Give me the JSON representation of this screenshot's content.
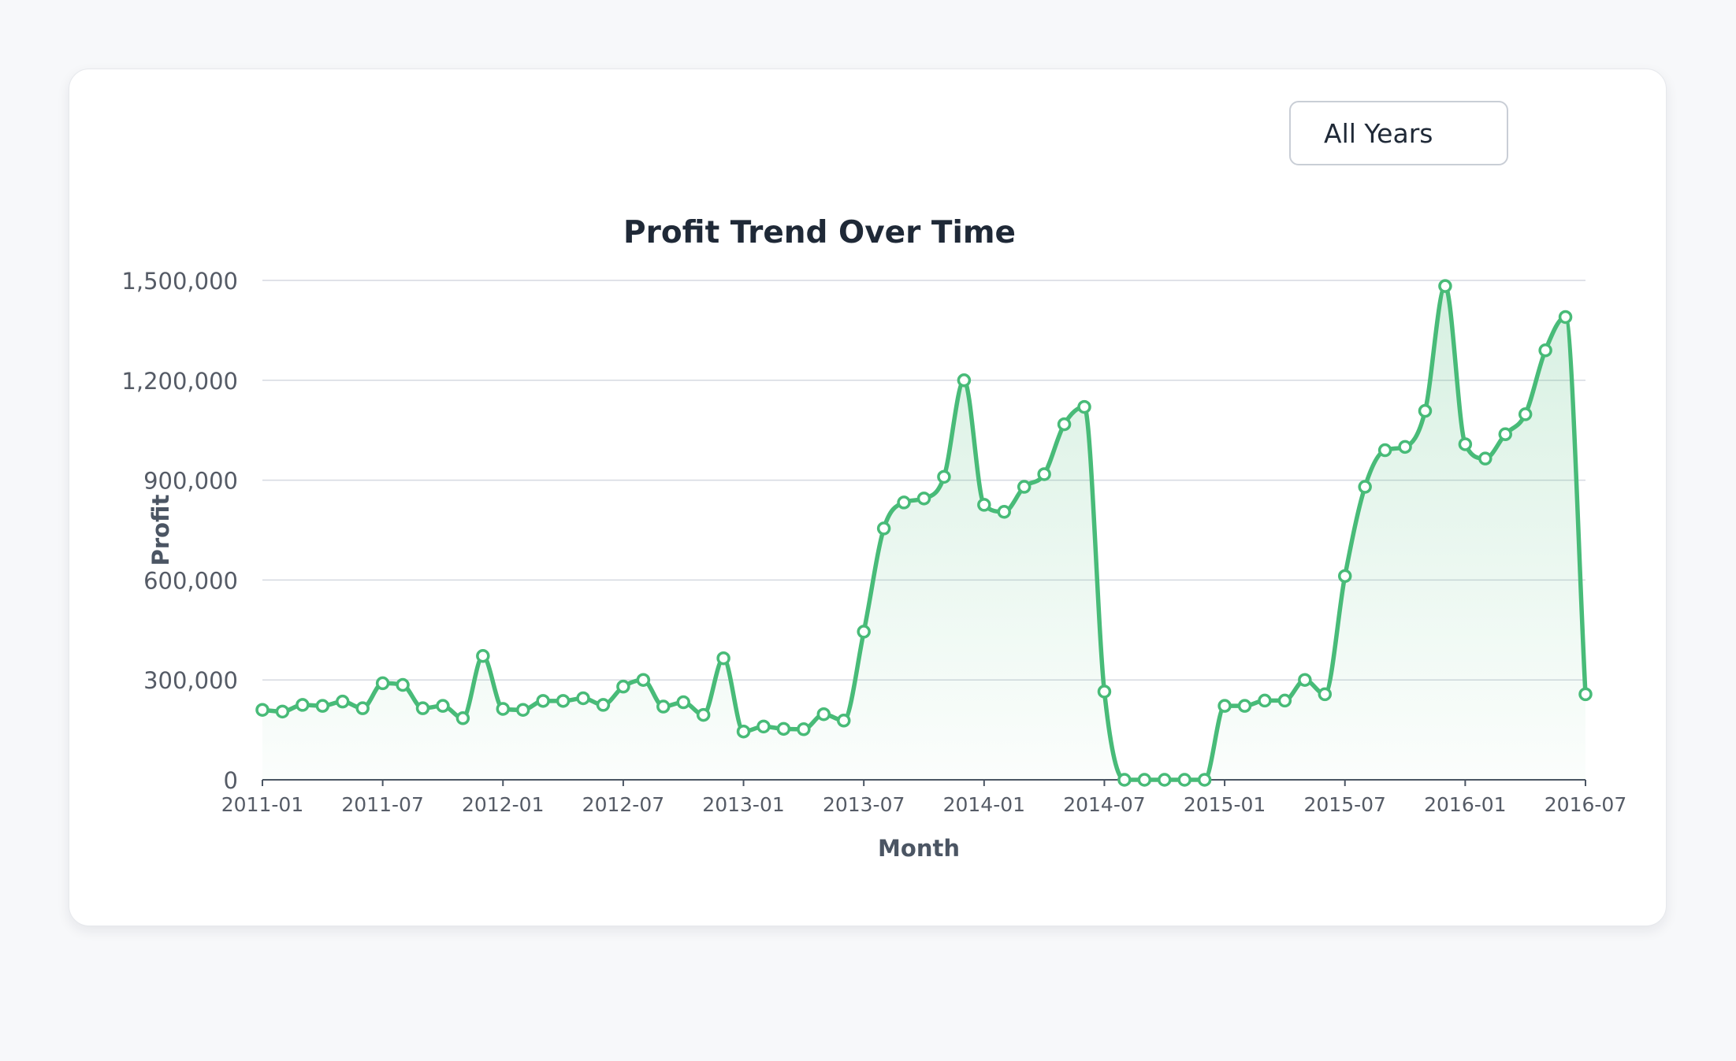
{
  "year_filter": {
    "selected": "All Years"
  },
  "chart_data": {
    "type": "area",
    "title": "Profit Trend Over Time",
    "xlabel": "Month",
    "ylabel": "Profit",
    "ylim": [
      0,
      1500000
    ],
    "yticks": [
      0,
      300000,
      600000,
      900000,
      1200000,
      1500000
    ],
    "ytick_labels": [
      "0",
      "300,000",
      "600,000",
      "900,000",
      "1,200,000",
      "1,500,000"
    ],
    "xtick_labels": [
      "2011-01",
      "2011-07",
      "2012-01",
      "2012-07",
      "2013-01",
      "2013-07",
      "2014-01",
      "2014-07",
      "2015-01",
      "2015-07",
      "2016-01",
      "2016-07"
    ],
    "grid": true,
    "line_color": "#48bb78",
    "series": [
      {
        "x": [
          "2011-01",
          "2011-02",
          "2011-03",
          "2011-04",
          "2011-05",
          "2011-06",
          "2011-07",
          "2011-08",
          "2011-09",
          "2011-10",
          "2011-11",
          "2011-12",
          "2012-01",
          "2012-02",
          "2012-03",
          "2012-04",
          "2012-05",
          "2012-06",
          "2012-07",
          "2012-08",
          "2012-09",
          "2012-10",
          "2012-11",
          "2012-12",
          "2013-01",
          "2013-02",
          "2013-03",
          "2013-04",
          "2013-05",
          "2013-06",
          "2013-07",
          "2013-08",
          "2013-09",
          "2013-10",
          "2013-11",
          "2013-12",
          "2014-01",
          "2014-02",
          "2014-03",
          "2014-04",
          "2014-05",
          "2014-06",
          "2014-07",
          "2014-08",
          "2014-09",
          "2014-10",
          "2014-11",
          "2014-12",
          "2015-01",
          "2015-02",
          "2015-03",
          "2015-04",
          "2015-05",
          "2015-06",
          "2015-07",
          "2015-08",
          "2015-09",
          "2015-10",
          "2015-11",
          "2015-12",
          "2016-01",
          "2016-02",
          "2016-03",
          "2016-04",
          "2016-05",
          "2016-06",
          "2016-07"
        ],
        "values": [
          210000,
          205000,
          225000,
          222000,
          235000,
          215000,
          290000,
          285000,
          215000,
          222000,
          185000,
          372000,
          213000,
          210000,
          237000,
          237000,
          245000,
          225000,
          280000,
          300000,
          220000,
          233000,
          195000,
          365000,
          145000,
          160000,
          153000,
          152000,
          197000,
          178000,
          445000,
          755000,
          833000,
          845000,
          910000,
          1200000,
          826000,
          805000,
          880000,
          918000,
          1068000,
          1120000,
          265000,
          0,
          0,
          0,
          0,
          0,
          222000,
          222000,
          238000,
          238000,
          300000,
          257000,
          612000,
          880000,
          990000,
          1000000,
          1108000,
          1483000,
          1008000,
          965000,
          1038000,
          1098000,
          1290000,
          1390000,
          257000
        ]
      }
    ]
  }
}
